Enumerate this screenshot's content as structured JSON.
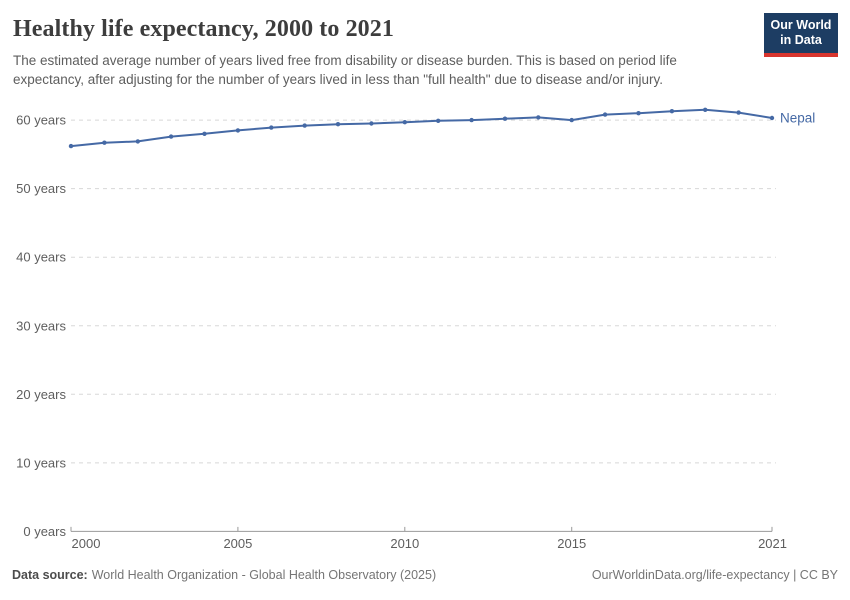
{
  "header": {
    "title": "Healthy life expectancy, 2000 to 2021",
    "subtitle": "The estimated average number of years lived free from disability or disease burden. This is based on period life expectancy, after adjusting for the number of years lived in less than \"full health\" due to disease and/or injury."
  },
  "logo": {
    "line1": "Our World",
    "line2": "in Data"
  },
  "chart_data": {
    "type": "line",
    "title": "Healthy life expectancy, 2000 to 2021",
    "x": [
      2000,
      2001,
      2002,
      2003,
      2004,
      2005,
      2006,
      2007,
      2008,
      2009,
      2010,
      2011,
      2012,
      2013,
      2014,
      2015,
      2016,
      2017,
      2018,
      2019,
      2020,
      2021
    ],
    "series": [
      {
        "name": "Nepal",
        "values": [
          56.2,
          56.7,
          56.9,
          57.6,
          58.0,
          58.5,
          58.9,
          59.2,
          59.4,
          59.5,
          59.7,
          59.9,
          60.0,
          60.2,
          60.4,
          60.0,
          60.8,
          61.0,
          61.3,
          61.5,
          61.1,
          60.3
        ],
        "color": "#4569a5"
      }
    ],
    "xlabel": "",
    "ylabel": "",
    "xlim": [
      2000,
      2021
    ],
    "ylim": [
      0,
      65
    ],
    "xticks": [
      2000,
      2005,
      2010,
      2015,
      2021
    ],
    "yticks": [
      0,
      10,
      20,
      30,
      40,
      50,
      60
    ],
    "ytick_suffix": " years",
    "grid": "horizontal-dashed",
    "legend_position": "end-of-line-label",
    "end_label": "Nepal"
  },
  "footer": {
    "source_label": "Data source:",
    "source_text": "World Health Organization - Global Health Observatory (2025)",
    "link_text": "OurWorldinData.org/life-expectancy | CC BY"
  },
  "colors": {
    "line": "#4569a5",
    "grid": "#d8d8d8",
    "axis": "#999999",
    "axis_text": "#5e5e5e",
    "title_text": "#3d3d3d",
    "subtitle_text": "#5e5e5e",
    "logo_bg": "#1d3d63",
    "logo_accent": "#d8352e"
  }
}
